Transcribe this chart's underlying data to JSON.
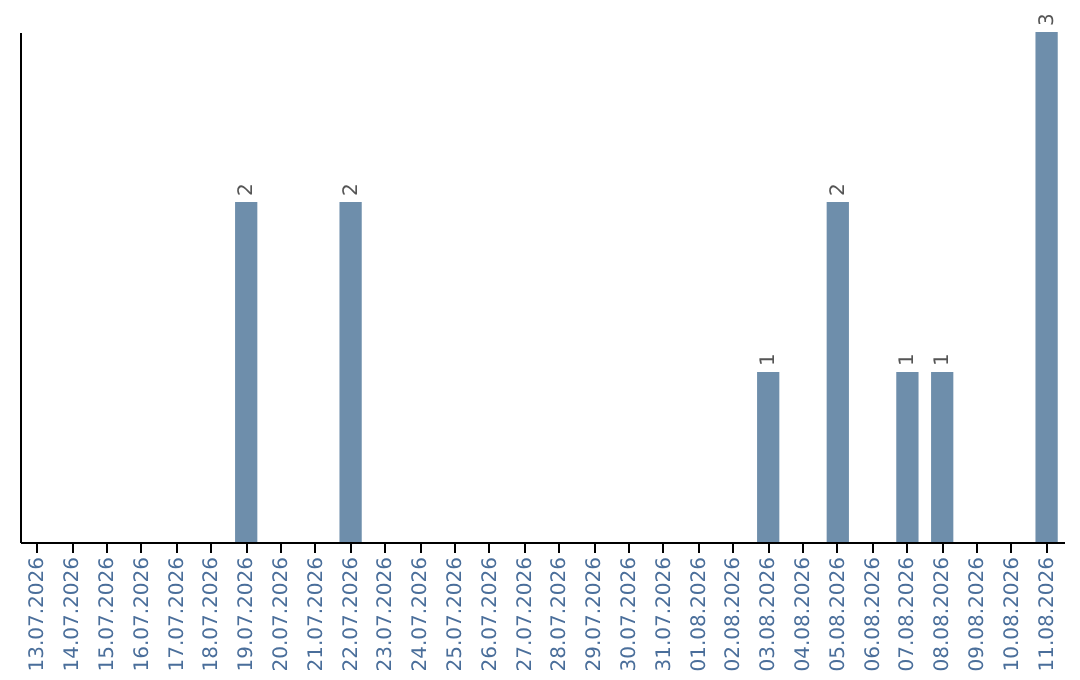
{
  "chart_data": {
    "type": "bar",
    "categories": [
      "13.07.2026",
      "14.07.2026",
      "15.07.2026",
      "16.07.2026",
      "17.07.2026",
      "18.07.2026",
      "19.07.2026",
      "20.07.2026",
      "21.07.2026",
      "22.07.2026",
      "23.07.2026",
      "24.07.2026",
      "25.07.2026",
      "26.07.2026",
      "27.07.2026",
      "28.07.2026",
      "29.07.2026",
      "30.07.2026",
      "31.07.2026",
      "01.08.2026",
      "02.08.2026",
      "03.08.2026",
      "04.08.2026",
      "05.08.2026",
      "06.08.2026",
      "07.08.2026",
      "08.08.2026",
      "09.08.2026",
      "10.08.2026",
      "11.08.2026"
    ],
    "values": [
      0,
      0,
      0,
      0,
      0,
      0,
      2,
      0,
      0,
      2,
      0,
      0,
      0,
      0,
      0,
      0,
      0,
      0,
      0,
      0,
      0,
      1,
      0,
      2,
      0,
      1,
      1,
      0,
      0,
      3
    ],
    "value_labels": [
      null,
      null,
      null,
      null,
      null,
      null,
      "2",
      null,
      null,
      "2",
      null,
      null,
      null,
      null,
      null,
      null,
      null,
      null,
      null,
      null,
      null,
      "1",
      null,
      "2",
      null,
      "1",
      "1",
      null,
      null,
      "3"
    ],
    "color": "#6e8eab"
  }
}
